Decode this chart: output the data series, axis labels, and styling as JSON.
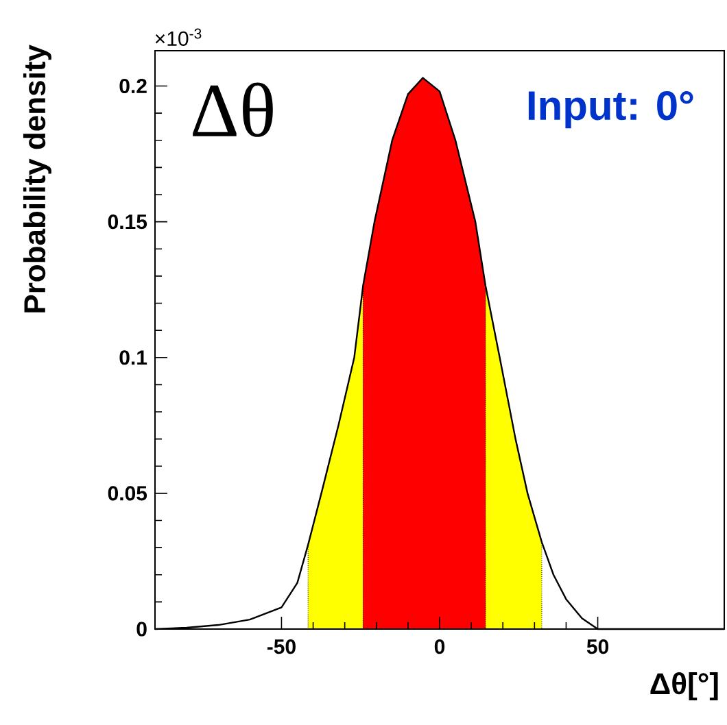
{
  "chart_data": {
    "type": "line",
    "xlabel": "Δθ[°]",
    "ylabel": "Probability density",
    "annotations": [
      "Δθ",
      "Input: 0°",
      "×10$^{-3}$"
    ],
    "xlim": [
      -90,
      90
    ],
    "ylim": [
      0,
      0.213
    ],
    "xticks": [
      -50,
      0,
      50
    ],
    "yticks": [
      0,
      0.05,
      0.1,
      0.15,
      0.2
    ],
    "series": [
      {
        "type": "area",
        "color": "#ffff00",
        "x": [
          -41.6,
          -37.4,
          -32,
          -27,
          -24.2
        ],
        "values": [
          0.031,
          0.05,
          0.075,
          0.1,
          0.1265
        ]
      },
      {
        "type": "area",
        "color": "#ffff00",
        "x": [
          14.5,
          19,
          24,
          27.8,
          32.3
        ],
        "values": [
          0.1265,
          0.1,
          0.07,
          0.05,
          0.032
        ]
      },
      {
        "type": "area",
        "color": "#ff0000",
        "x": [
          -24.2,
          -20.6,
          -15,
          -10,
          -5.3,
          0,
          5,
          11.3,
          14.5
        ],
        "values": [
          0.1265,
          0.15,
          0.18,
          0.197,
          0.203,
          0.198,
          0.18,
          0.15,
          0.1265
        ]
      },
      {
        "color": "#000000",
        "x": [
          -90,
          -80,
          -70,
          -60,
          -50,
          -45,
          -41.6,
          -37.4,
          -32,
          -27,
          -24.2,
          -20.6,
          -15,
          -10,
          -5.3,
          0,
          5,
          11.3,
          14.5,
          19,
          24,
          27.8,
          32.3,
          36,
          40,
          45,
          50,
          60,
          90
        ],
        "values": [
          0,
          0.0005,
          0.0015,
          0.0035,
          0.008,
          0.017,
          0.031,
          0.05,
          0.075,
          0.1,
          0.1265,
          0.15,
          0.18,
          0.197,
          0.203,
          0.198,
          0.18,
          0.15,
          0.1265,
          0.1,
          0.07,
          0.05,
          0.032,
          0.02,
          0.011,
          0.004,
          0,
          0,
          0
        ]
      }
    ]
  }
}
